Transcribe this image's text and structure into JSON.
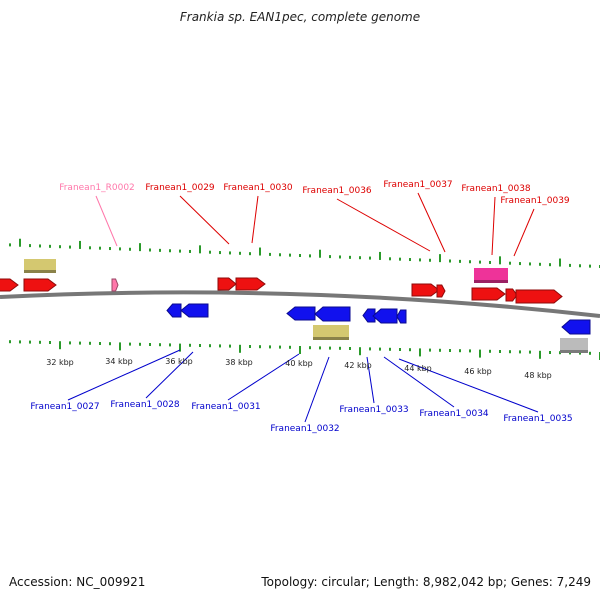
{
  "title": "Frankia sp. EAN1pec, complete genome",
  "footer": {
    "accession": "Accession: NC_009921",
    "topology": "Topology: circular; Length: 8,982,042 bp; Genes: 7,249"
  },
  "colors": {
    "forward_cds": "#ee1111",
    "reverse_cds": "#1111ee",
    "rna": "#ff77aa",
    "pseudo": "#d4c870",
    "misc": "#ee3399",
    "other": "#bbbbbb",
    "ticks": "#2a9a2a",
    "axis": "#777777"
  },
  "scale_labels": [
    "32 kbp",
    "34 kbp",
    "36 kbp",
    "38 kbp",
    "40 kbp",
    "42 kbp",
    "44 kbp",
    "46 kbp",
    "48 kbp"
  ],
  "gene_labels_top": [
    {
      "text": "Franean1_R0002",
      "kind": "rna"
    },
    {
      "text": "Franean1_0029",
      "kind": "forward"
    },
    {
      "text": "Franean1_0030",
      "kind": "forward"
    },
    {
      "text": "Franean1_0036",
      "kind": "forward"
    },
    {
      "text": "Franean1_0037",
      "kind": "forward"
    },
    {
      "text": "Franean1_0038",
      "kind": "forward"
    },
    {
      "text": "Franean1_0039",
      "kind": "forward"
    }
  ],
  "gene_labels_bottom": [
    {
      "text": "Franean1_0027",
      "kind": "reverse"
    },
    {
      "text": "Franean1_0028",
      "kind": "reverse"
    },
    {
      "text": "Franean1_0031",
      "kind": "reverse"
    },
    {
      "text": "Franean1_0032",
      "kind": "reverse"
    },
    {
      "text": "Franean1_0033",
      "kind": "reverse"
    },
    {
      "text": "Franean1_0034",
      "kind": "reverse"
    },
    {
      "text": "Franean1_0035",
      "kind": "reverse"
    }
  ]
}
